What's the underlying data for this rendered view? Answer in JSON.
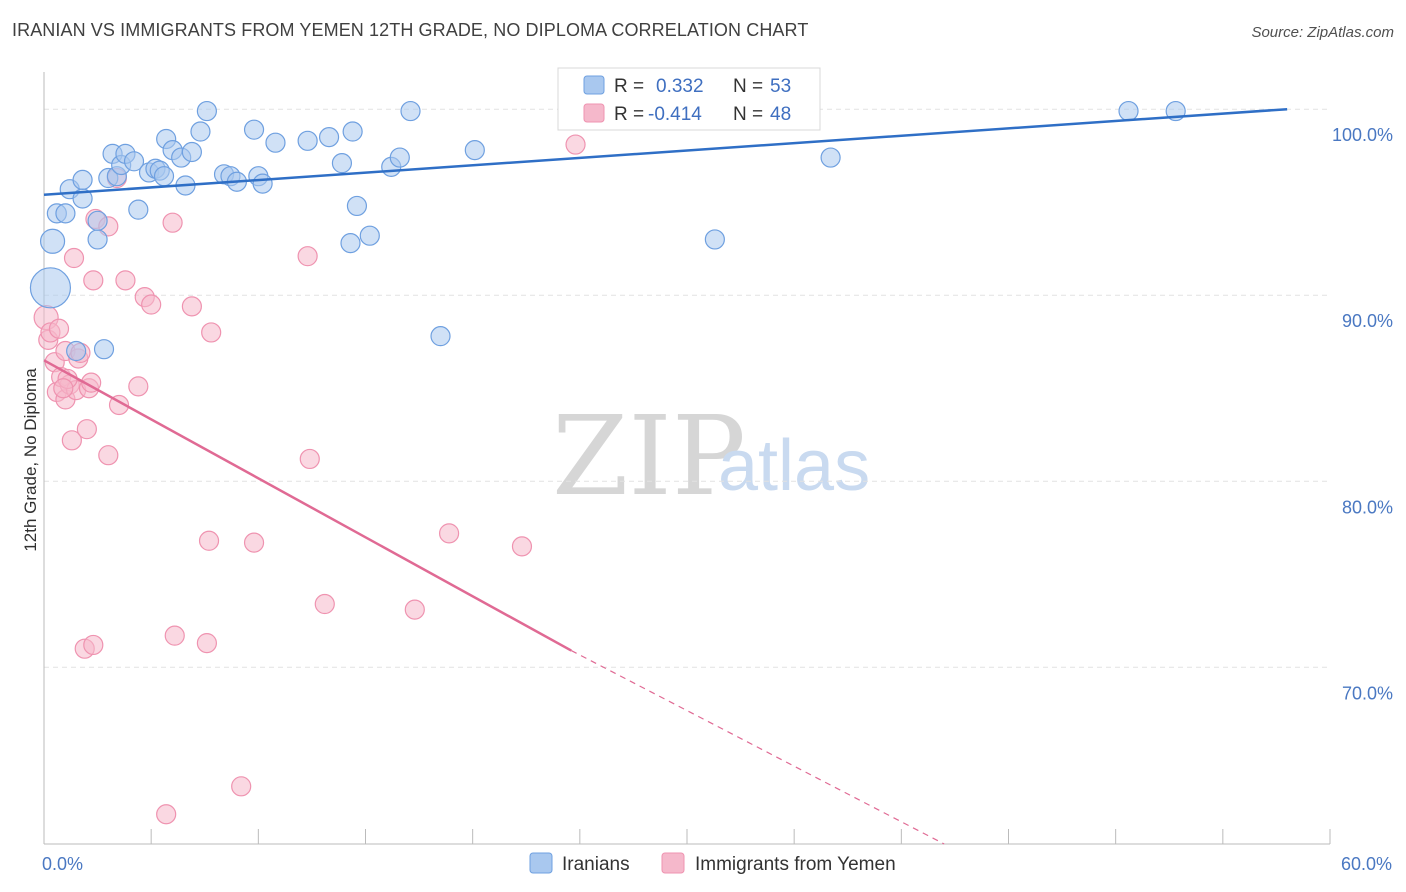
{
  "header": {
    "title": "IRANIAN VS IMMIGRANTS FROM YEMEN 12TH GRADE, NO DIPLOMA CORRELATION CHART",
    "source": "Source: ZipAtlas.com"
  },
  "watermark": {
    "zip": "ZIP",
    "atlas": "atlas"
  },
  "legend_top": {
    "rows": [
      {
        "r_label": "R =",
        "r_value": "0.332",
        "n_label": "N =",
        "n_value": "53",
        "color": "#a9c8ef"
      },
      {
        "r_label": "R =",
        "r_value": "-0.414",
        "n_label": "N =",
        "n_value": "48",
        "color": "#f5b8cb"
      }
    ]
  },
  "legend_bottom": {
    "items": [
      {
        "label": "Iranians",
        "color": "#a9c8ef"
      },
      {
        "label": "Immigrants from Yemen",
        "color": "#f5b8cb"
      }
    ]
  },
  "chart_data": {
    "type": "scatter",
    "title": "IRANIAN VS IMMIGRANTS FROM YEMEN 12TH GRADE, NO DIPLOMA CORRELATION CHART",
    "xlabel": "",
    "ylabel": "12th Grade, No Diploma",
    "xlim": [
      0,
      60
    ],
    "ylim": [
      60.5,
      102
    ],
    "x_tick_labels": [
      "0.0%",
      "60.0%"
    ],
    "y_ticks": [
      70,
      80,
      90,
      100
    ],
    "y_tick_labels": [
      "70.0%",
      "80.0%",
      "90.0%",
      "100.0%"
    ],
    "grid": true,
    "legend_position": "top-center",
    "series": [
      {
        "name": "Iranians",
        "color": "#6fa0e0",
        "fill": "#a9c8ef",
        "trend": {
          "x": [
            0,
            58
          ],
          "y": [
            95.4,
            100
          ],
          "style": "solid",
          "color": "#2f6fc6"
        },
        "points": [
          [
            0.3,
            90.4
          ],
          [
            0.4,
            92.9
          ],
          [
            0.6,
            94.4
          ],
          [
            1.0,
            94.4
          ],
          [
            1.2,
            95.7
          ],
          [
            1.8,
            95.2
          ],
          [
            1.8,
            96.2
          ],
          [
            2.5,
            93.0
          ],
          [
            2.5,
            94.0
          ],
          [
            3.0,
            96.3
          ],
          [
            3.2,
            97.6
          ],
          [
            3.4,
            96.4
          ],
          [
            3.6,
            97.0
          ],
          [
            3.8,
            97.6
          ],
          [
            4.2,
            97.2
          ],
          [
            4.4,
            94.6
          ],
          [
            4.9,
            96.6
          ],
          [
            5.2,
            96.8
          ],
          [
            5.4,
            96.7
          ],
          [
            5.6,
            96.4
          ],
          [
            5.7,
            98.4
          ],
          [
            6.0,
            97.8
          ],
          [
            6.4,
            97.4
          ],
          [
            6.6,
            95.9
          ],
          [
            6.9,
            97.7
          ],
          [
            7.3,
            98.8
          ],
          [
            7.6,
            99.9
          ],
          [
            8.4,
            96.5
          ],
          [
            8.7,
            96.4
          ],
          [
            9.0,
            96.1
          ],
          [
            9.8,
            98.9
          ],
          [
            10.0,
            96.4
          ],
          [
            10.2,
            96.0
          ],
          [
            10.8,
            98.2
          ],
          [
            12.3,
            98.3
          ],
          [
            13.3,
            98.5
          ],
          [
            13.9,
            97.1
          ],
          [
            14.3,
            92.8
          ],
          [
            14.4,
            98.8
          ],
          [
            14.6,
            94.8
          ],
          [
            15.2,
            93.2
          ],
          [
            16.2,
            96.9
          ],
          [
            16.6,
            97.4
          ],
          [
            17.1,
            99.9
          ],
          [
            18.5,
            87.8
          ],
          [
            20.1,
            97.8
          ],
          [
            31.3,
            93.0
          ],
          [
            35.7,
            100.0
          ],
          [
            36.7,
            97.4
          ],
          [
            50.6,
            99.9
          ],
          [
            52.8,
            99.9
          ],
          [
            2.8,
            87.1
          ],
          [
            1.5,
            87.0
          ]
        ]
      },
      {
        "name": "Immigrants from Yemen",
        "color": "#ef93b0",
        "fill": "#f5b8cb",
        "trend": {
          "x": [
            0,
            24.6
          ],
          "y": [
            86.5,
            70.9
          ],
          "style": "solid",
          "color": "#e06a94",
          "extension": {
            "x": [
              24.6,
              42
            ],
            "y": [
              70.9,
              60.5
            ],
            "style": "dashed"
          }
        },
        "points": [
          [
            0.1,
            88.8
          ],
          [
            0.2,
            87.6
          ],
          [
            0.3,
            88.0
          ],
          [
            0.5,
            86.4
          ],
          [
            0.6,
            84.8
          ],
          [
            0.7,
            88.2
          ],
          [
            0.8,
            85.6
          ],
          [
            1.0,
            84.4
          ],
          [
            1.0,
            87.0
          ],
          [
            1.2,
            85.2
          ],
          [
            1.3,
            82.2
          ],
          [
            1.4,
            92.0
          ],
          [
            1.5,
            84.9
          ],
          [
            1.6,
            86.6
          ],
          [
            1.7,
            86.9
          ],
          [
            1.9,
            71.0
          ],
          [
            2.0,
            82.8
          ],
          [
            2.1,
            85.0
          ],
          [
            2.2,
            85.3
          ],
          [
            2.3,
            71.2
          ],
          [
            2.3,
            90.8
          ],
          [
            2.4,
            94.1
          ],
          [
            3.0,
            93.7
          ],
          [
            3.0,
            81.4
          ],
          [
            3.4,
            96.3
          ],
          [
            3.5,
            84.1
          ],
          [
            3.8,
            90.8
          ],
          [
            4.4,
            85.1
          ],
          [
            4.7,
            89.9
          ],
          [
            5.0,
            89.5
          ],
          [
            5.7,
            62.1
          ],
          [
            6.0,
            93.9
          ],
          [
            6.1,
            71.7
          ],
          [
            6.9,
            89.4
          ],
          [
            7.6,
            71.3
          ],
          [
            7.7,
            76.8
          ],
          [
            7.8,
            88.0
          ],
          [
            9.2,
            63.6
          ],
          [
            9.8,
            76.7
          ],
          [
            12.3,
            92.1
          ],
          [
            12.4,
            81.2
          ],
          [
            13.1,
            73.4
          ],
          [
            17.3,
            73.1
          ],
          [
            18.9,
            77.2
          ],
          [
            22.3,
            76.5
          ],
          [
            24.8,
            98.1
          ],
          [
            1.1,
            85.5
          ],
          [
            0.9,
            85.0
          ]
        ]
      }
    ]
  }
}
